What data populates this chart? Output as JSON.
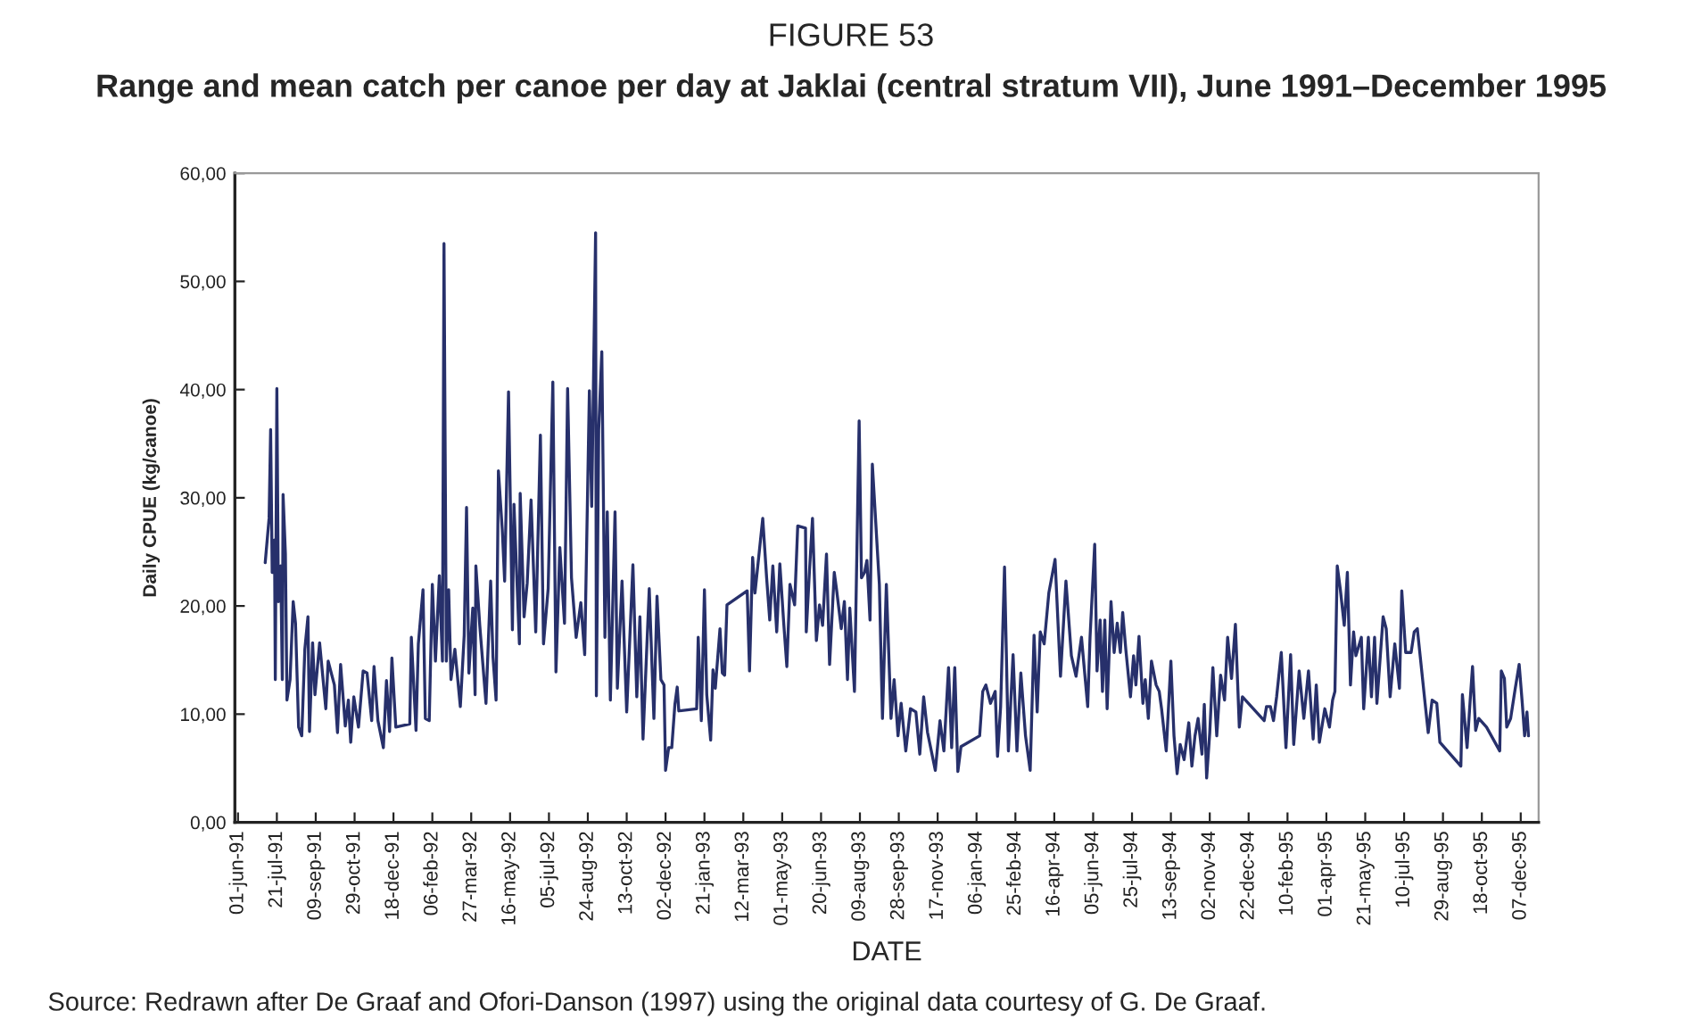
{
  "chart_data": {
    "type": "line",
    "title": "FIGURE 53",
    "subtitle": "Range and mean catch per canoe per day at Jaklai (central stratum VII), June 1991–December 1995",
    "xlabel": "DATE",
    "ylabel": "Daily CPUE (kg/canoe)",
    "annotations": [
      "Source: Redrawn after De Graaf and Ofori-Danson (1997) using the original data courtesy of G. De Graaf."
    ],
    "xlim": [
      "1991-05-28",
      "1995-12-30"
    ],
    "xticks": [
      {
        "value": "1991-06-01",
        "label": "01-jun-91"
      },
      {
        "value": "1991-07-21",
        "label": "21-jul-91"
      },
      {
        "value": "1991-09-09",
        "label": "09-sep-91"
      },
      {
        "value": "1991-10-29",
        "label": "29-oct-91"
      },
      {
        "value": "1991-12-18",
        "label": "18-dec-91"
      },
      {
        "value": "1992-02-06",
        "label": "06-feb-92"
      },
      {
        "value": "1992-03-27",
        "label": "27-mar-92"
      },
      {
        "value": "1992-05-16",
        "label": "16-may-92"
      },
      {
        "value": "1992-07-05",
        "label": "05-jul-92"
      },
      {
        "value": "1992-08-24",
        "label": "24-aug-92"
      },
      {
        "value": "1992-10-13",
        "label": "13-oct-92"
      },
      {
        "value": "1992-12-02",
        "label": "02-dec-92"
      },
      {
        "value": "1993-01-21",
        "label": "21-jan-93"
      },
      {
        "value": "1993-03-12",
        "label": "12-mar-93"
      },
      {
        "value": "1993-05-01",
        "label": "01-may-93"
      },
      {
        "value": "1993-06-20",
        "label": "20-jun-93"
      },
      {
        "value": "1993-08-09",
        "label": "09-aug-93"
      },
      {
        "value": "1993-09-28",
        "label": "28-sep-93"
      },
      {
        "value": "1993-11-17",
        "label": "17-nov-93"
      },
      {
        "value": "1994-01-06",
        "label": "06-jan-94"
      },
      {
        "value": "1994-02-25",
        "label": "25-feb-94"
      },
      {
        "value": "1994-04-16",
        "label": "16-apr-94"
      },
      {
        "value": "1994-06-05",
        "label": "05-jun-94"
      },
      {
        "value": "1994-07-25",
        "label": "25-jul-94"
      },
      {
        "value": "1994-09-13",
        "label": "13-sep-94"
      },
      {
        "value": "1994-11-02",
        "label": "02-nov-94"
      },
      {
        "value": "1994-12-22",
        "label": "22-dec-94"
      },
      {
        "value": "1995-02-10",
        "label": "10-feb-95"
      },
      {
        "value": "1995-04-01",
        "label": "01-apr-95"
      },
      {
        "value": "1995-05-21",
        "label": "21-may-95"
      },
      {
        "value": "1995-07-10",
        "label": "10-jul-95"
      },
      {
        "value": "1995-08-29",
        "label": "29-aug-95"
      },
      {
        "value": "1995-10-18",
        "label": "18-oct-95"
      },
      {
        "value": "1995-12-07",
        "label": "07-dec-95"
      }
    ],
    "ylim": [
      0,
      60
    ],
    "yticks": [
      {
        "value": 0,
        "label": "0,00"
      },
      {
        "value": 10,
        "label": "10,00"
      },
      {
        "value": 20,
        "label": "20,00"
      },
      {
        "value": 30,
        "label": "30,00"
      },
      {
        "value": 40,
        "label": "40,00"
      },
      {
        "value": 50,
        "label": "50,00"
      },
      {
        "value": 60,
        "label": "60,00"
      }
    ],
    "grid": false,
    "marker": "none",
    "line_style": "solid",
    "series": [
      {
        "color": "#27306b",
        "x": [
          "1991-07-06",
          "1991-07-11",
          "1991-07-13",
          "1991-07-15",
          "1991-07-18",
          "1991-07-19",
          "1991-07-21",
          "1991-07-23",
          "1991-07-26",
          "1991-07-28",
          "1991-07-29",
          "1991-08-01",
          "1991-08-03",
          "1991-08-07",
          "1991-08-11",
          "1991-08-14",
          "1991-08-18",
          "1991-08-22",
          "1991-08-26",
          "1991-08-30",
          "1991-09-01",
          "1991-09-05",
          "1991-09-08",
          "1991-09-14",
          "1991-09-22",
          "1991-09-25",
          "1991-10-03",
          "1991-10-07",
          "1991-10-11",
          "1991-10-17",
          "1991-10-21",
          "1991-10-24",
          "1991-10-28",
          "1991-11-03",
          "1991-11-09",
          "1991-11-14",
          "1991-11-20",
          "1991-11-23",
          "1991-11-28",
          "1991-12-05",
          "1991-12-09",
          "1991-12-13",
          "1991-12-16",
          "1991-12-21",
          "1992-01-08",
          "1992-01-10",
          "1992-01-16",
          "1992-01-19",
          "1992-01-25",
          "1992-01-28",
          "1992-02-02",
          "1992-02-06",
          "1992-02-10",
          "1992-02-15",
          "1992-02-19",
          "1992-02-21",
          "1992-02-24",
          "1992-02-27",
          "1992-03-01",
          "1992-03-06",
          "1992-03-13",
          "1992-03-18",
          "1992-03-21",
          "1992-03-24",
          "1992-03-29",
          "1992-04-01",
          "1992-04-02",
          "1992-04-07",
          "1992-04-15",
          "1992-04-21",
          "1992-04-24",
          "1992-04-28",
          "1992-05-01",
          "1992-05-06",
          "1992-05-09",
          "1992-05-14",
          "1992-05-19",
          "1992-05-21",
          "1992-05-28",
          "1992-05-29",
          "1992-06-03",
          "1992-06-07",
          "1992-06-12",
          "1992-06-18",
          "1992-06-24",
          "1992-06-28",
          "1992-07-04",
          "1992-07-10",
          "1992-07-14",
          "1992-07-19",
          "1992-07-25",
          "1992-07-29",
          "1992-08-03",
          "1992-08-09",
          "1992-08-15",
          "1992-08-20",
          "1992-08-26",
          "1992-08-29",
          "1992-09-03",
          "1992-09-04",
          "1992-09-07",
          "1992-09-11",
          "1992-09-15",
          "1992-09-18",
          "1992-09-22",
          "1992-09-28",
          "1992-10-01",
          "1992-10-07",
          "1992-10-13",
          "1992-10-21",
          "1992-10-26",
          "1992-10-30",
          "1992-11-03",
          "1992-11-11",
          "1992-11-17",
          "1992-11-21",
          "1992-11-26",
          "1992-11-30",
          "1992-12-02",
          "1992-12-06",
          "1992-12-10",
          "1992-12-14",
          "1992-12-17",
          "1992-12-19",
          "1993-01-11",
          "1993-01-13",
          "1993-01-17",
          "1993-01-21",
          "1993-01-24",
          "1993-01-29",
          "1993-02-01",
          "1993-02-04",
          "1993-02-10",
          "1993-02-13",
          "1993-02-16",
          "1993-02-19",
          "1993-03-17",
          "1993-03-20",
          "1993-03-24",
          "1993-03-27",
          "1993-04-06",
          "1993-04-11",
          "1993-04-15",
          "1993-04-19",
          "1993-04-24",
          "1993-04-28",
          "1993-05-03",
          "1993-05-07",
          "1993-05-11",
          "1993-05-17",
          "1993-05-21",
          "1993-05-31",
          "1993-06-01",
          "1993-06-05",
          "1993-06-09",
          "1993-06-14",
          "1993-06-18",
          "1993-06-22",
          "1993-06-27",
          "1993-07-01",
          "1993-07-07",
          "1993-07-10",
          "1993-07-16",
          "1993-07-20",
          "1993-07-24",
          "1993-07-27",
          "1993-08-02",
          "1993-08-08",
          "1993-08-11",
          "1993-08-15",
          "1993-08-18",
          "1993-08-22",
          "1993-08-25",
          "1993-09-03",
          "1993-09-07",
          "1993-09-12",
          "1993-09-18",
          "1993-09-22",
          "1993-09-27",
          "1993-10-01",
          "1993-10-07",
          "1993-10-13",
          "1993-10-20",
          "1993-10-25",
          "1993-10-30",
          "1993-11-04",
          "1993-11-14",
          "1993-11-20",
          "1993-11-25",
          "1993-12-01",
          "1993-12-05",
          "1993-12-09",
          "1993-12-13",
          "1993-12-17",
          "1994-01-10",
          "1994-01-14",
          "1994-01-18",
          "1994-01-24",
          "1994-01-30",
          "1994-02-02",
          "1994-02-06",
          "1994-02-11",
          "1994-02-16",
          "1994-02-22",
          "1994-02-27",
          "1994-03-04",
          "1994-03-10",
          "1994-03-16",
          "1994-03-21",
          "1994-03-25",
          "1994-03-29",
          "1994-04-03",
          "1994-04-09",
          "1994-04-17",
          "1994-04-24",
          "1994-05-01",
          "1994-05-08",
          "1994-05-14",
          "1994-05-21",
          "1994-05-29",
          "1994-06-01",
          "1994-06-07",
          "1994-06-10",
          "1994-06-14",
          "1994-06-17",
          "1994-06-20",
          "1994-06-23",
          "1994-06-28",
          "1994-07-02",
          "1994-07-06",
          "1994-07-10",
          "1994-07-13",
          "1994-07-17",
          "1994-07-23",
          "1994-07-27",
          "1994-07-30",
          "1994-08-03",
          "1994-08-08",
          "1994-08-11",
          "1994-08-15",
          "1994-08-19",
          "1994-08-25",
          "1994-08-29",
          "1994-09-01",
          "1994-09-07",
          "1994-09-13",
          "1994-09-17",
          "1994-09-21",
          "1994-09-25",
          "1994-09-30",
          "1994-10-06",
          "1994-10-10",
          "1994-10-14",
          "1994-10-18",
          "1994-10-23",
          "1994-10-26",
          "1994-10-29",
          "1994-11-02",
          "1994-11-06",
          "1994-11-11",
          "1994-11-16",
          "1994-11-21",
          "1994-11-25",
          "1994-11-30",
          "1994-12-05",
          "1994-12-10",
          "1994-12-14",
          "1995-01-11",
          "1995-01-14",
          "1995-01-19",
          "1995-01-23",
          "1995-01-27",
          "1995-02-02",
          "1995-02-08",
          "1995-02-14",
          "1995-02-18",
          "1995-02-25",
          "1995-03-03",
          "1995-03-09",
          "1995-03-15",
          "1995-03-19",
          "1995-03-23",
          "1995-03-30",
          "1995-04-05",
          "1995-04-09",
          "1995-04-12",
          "1995-04-15",
          "1995-04-19",
          "1995-04-24",
          "1995-04-28",
          "1995-05-02",
          "1995-05-06",
          "1995-05-09",
          "1995-05-16",
          "1995-05-19",
          "1995-05-25",
          "1995-05-29",
          "1995-06-02",
          "1995-06-05",
          "1995-06-13",
          "1995-06-17",
          "1995-06-22",
          "1995-06-28",
          "1995-07-04",
          "1995-07-07",
          "1995-07-12",
          "1995-07-19",
          "1995-07-23",
          "1995-07-27",
          "1995-08-06",
          "1995-08-10",
          "1995-08-15",
          "1995-08-21",
          "1995-08-25",
          "1995-09-21",
          "1995-09-23",
          "1995-09-29",
          "1995-10-03",
          "1995-10-06",
          "1995-10-10",
          "1995-10-14",
          "1995-10-24",
          "1995-11-10",
          "1995-11-12",
          "1995-11-16",
          "1995-11-19",
          "1995-11-24",
          "1995-11-30",
          "1995-12-05",
          "1995-12-09",
          "1995-12-12",
          "1995-12-15",
          "1995-12-17"
        ],
        "values": [
          24.0,
          28.1,
          36.3,
          23.1,
          26.1,
          13.2,
          40.1,
          20.4,
          23.7,
          13.2,
          30.3,
          24.8,
          11.3,
          13.2,
          20.4,
          18.4,
          8.8,
          8.0,
          16.0,
          19.0,
          8.4,
          16.6,
          11.8,
          16.6,
          10.5,
          14.9,
          12.7,
          8.3,
          14.6,
          8.9,
          11.3,
          7.4,
          11.6,
          8.8,
          14.0,
          13.8,
          9.4,
          14.4,
          9.4,
          6.9,
          13.1,
          8.4,
          15.2,
          8.8,
          9.1,
          17.1,
          8.5,
          16.5,
          21.5,
          9.6,
          9.4,
          22.0,
          14.9,
          22.8,
          14.9,
          53.5,
          14.9,
          21.5,
          13.2,
          16.0,
          10.7,
          17.3,
          29.1,
          13.8,
          19.8,
          11.8,
          23.7,
          18.2,
          11.0,
          22.3,
          15.3,
          11.3,
          32.5,
          27.0,
          22.3,
          39.8,
          17.8,
          29.4,
          16.5,
          30.4,
          19.0,
          22.1,
          29.8,
          17.6,
          35.8,
          16.5,
          21.6,
          40.7,
          13.9,
          25.4,
          18.4,
          40.1,
          22.6,
          17.1,
          20.3,
          15.5,
          39.9,
          29.2,
          54.5,
          11.7,
          36.3,
          43.5,
          17.1,
          28.7,
          11.3,
          28.7,
          12.4,
          22.3,
          10.2,
          23.8,
          11.6,
          19.0,
          7.7,
          21.6,
          9.6,
          20.9,
          13.2,
          12.7,
          4.8,
          6.9,
          6.9,
          10.9,
          12.5,
          10.3,
          10.5,
          17.1,
          9.4,
          21.5,
          11.8,
          7.6,
          14.1,
          12.4,
          17.9,
          13.8,
          13.6,
          20.1,
          21.4,
          14.0,
          24.5,
          21.2,
          28.1,
          22.6,
          18.7,
          23.7,
          17.6,
          23.9,
          18.4,
          14.4,
          22.0,
          20.1,
          27.4,
          27.2,
          17.6,
          23.1,
          28.1,
          16.8,
          20.1,
          18.2,
          24.8,
          14.6,
          23.1,
          21.5,
          17.9,
          20.4,
          13.2,
          19.8,
          12.1,
          37.1,
          22.6,
          23.1,
          24.2,
          18.7,
          33.1,
          22.0,
          9.6,
          22.0,
          9.6,
          13.2,
          8.0,
          11.0,
          6.6,
          10.5,
          10.2,
          6.3,
          11.6,
          8.3,
          4.8,
          9.4,
          6.6,
          14.3,
          6.9,
          14.3,
          4.7,
          7.0,
          8.0,
          12.1,
          12.7,
          11.0,
          12.1,
          6.1,
          10.7,
          23.6,
          6.6,
          15.5,
          6.6,
          13.8,
          8.0,
          4.8,
          17.3,
          10.2,
          17.6,
          16.5,
          21.2,
          24.3,
          13.5,
          22.3,
          15.4,
          13.5,
          17.1,
          10.7,
          17.1,
          25.7,
          14.0,
          18.7,
          12.1,
          18.7,
          10.5,
          20.4,
          15.7,
          18.4,
          15.7,
          19.4,
          16.0,
          11.6,
          15.4,
          12.7,
          17.2,
          11.0,
          13.2,
          9.6,
          14.9,
          12.7,
          12.1,
          10.5,
          6.6,
          14.9,
          8.0,
          4.5,
          7.2,
          5.8,
          9.2,
          5.2,
          8.0,
          9.6,
          6.3,
          10.9,
          4.1,
          8.3,
          14.3,
          8.0,
          13.6,
          11.3,
          17.1,
          13.3,
          18.3,
          8.8,
          11.6,
          9.4,
          10.7,
          10.7,
          9.4,
          11.6,
          15.7,
          6.9,
          15.5,
          7.2,
          14.0,
          9.6,
          14.0,
          7.7,
          12.7,
          7.4,
          10.5,
          8.8,
          11.3,
          12.1,
          23.7,
          21.5,
          18.2,
          23.1,
          12.7,
          17.6,
          15.4,
          17.1,
          10.5,
          17.1,
          11.6,
          17.1,
          11.0,
          19.0,
          17.9,
          11.6,
          16.5,
          12.4,
          21.4,
          15.7,
          15.7,
          17.6,
          17.9,
          11.0,
          8.3,
          11.3,
          11.0,
          7.4,
          5.2,
          11.8,
          6.9,
          11.3,
          14.4,
          8.5,
          9.6,
          8.8,
          6.6,
          14.0,
          13.3,
          8.8,
          9.6,
          12.4,
          14.6,
          11.0,
          8.0,
          10.2,
          8.0
        ]
      }
    ]
  }
}
